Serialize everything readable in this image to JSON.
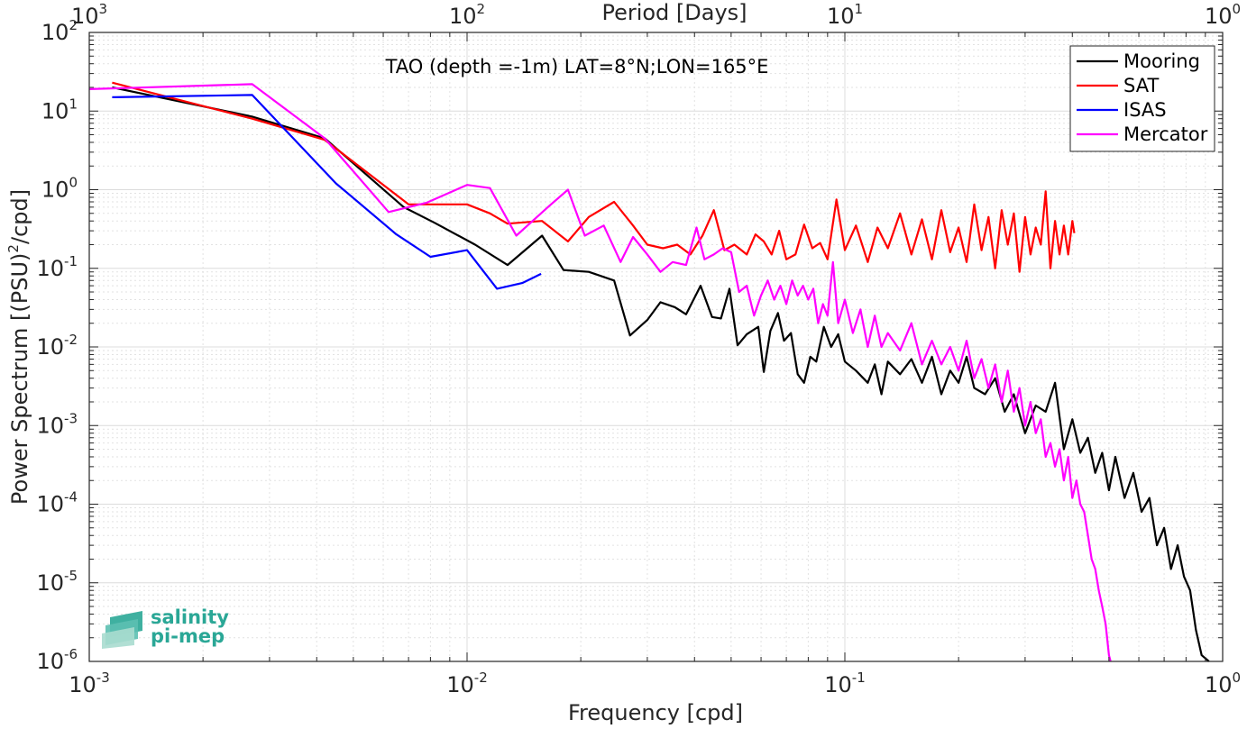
{
  "chart_data": {
    "type": "line",
    "title": "TAO (depth =-1m) LAT=8°N;LON=165°E",
    "xlabel": "Frequency [cpd]",
    "ylabel_main": "Power Spectrum [(PSU)",
    "ylabel_sup": "2",
    "ylabel_tail": "/cpd]",
    "top_xlabel": "Period [Days]",
    "x_scale": "log",
    "y_scale": "log",
    "xlim": [
      0.001,
      1
    ],
    "ylim": [
      1e-06,
      100
    ],
    "grid": true,
    "legend_position": "top-right",
    "x_ticks": [
      {
        "value": 0.001,
        "base": "10",
        "exp": "-3"
      },
      {
        "value": 0.01,
        "base": "10",
        "exp": "-2"
      },
      {
        "value": 0.1,
        "base": "10",
        "exp": "-1"
      },
      {
        "value": 1,
        "base": "10",
        "exp": "0"
      }
    ],
    "top_ticks": [
      {
        "value": 0.001,
        "base": "10",
        "exp": "3"
      },
      {
        "value": 0.01,
        "base": "10",
        "exp": "2"
      },
      {
        "value": 0.1,
        "base": "10",
        "exp": "1"
      },
      {
        "value": 1,
        "base": "10",
        "exp": "0"
      }
    ],
    "y_ticks": [
      {
        "value": 100,
        "base": "10",
        "exp": "2"
      },
      {
        "value": 10,
        "base": "10",
        "exp": "1"
      },
      {
        "value": 1,
        "base": "10",
        "exp": "0"
      },
      {
        "value": 0.1,
        "base": "10",
        "exp": "-1"
      },
      {
        "value": 0.01,
        "base": "10",
        "exp": "-2"
      },
      {
        "value": 0.001,
        "base": "10",
        "exp": "-3"
      },
      {
        "value": 0.0001,
        "base": "10",
        "exp": "-4"
      },
      {
        "value": 1e-05,
        "base": "10",
        "exp": "-5"
      },
      {
        "value": 1e-06,
        "base": "10",
        "exp": "-6"
      }
    ],
    "series": [
      {
        "name": "Mooring",
        "color": "#000000",
        "points": [
          [
            0.00115,
            20
          ],
          [
            0.0027,
            8.5
          ],
          [
            0.0042,
            4.5
          ],
          [
            0.0068,
            0.6
          ],
          [
            0.0082,
            0.38
          ],
          [
            0.0105,
            0.2
          ],
          [
            0.0128,
            0.11
          ],
          [
            0.0158,
            0.26
          ],
          [
            0.018,
            0.095
          ],
          [
            0.021,
            0.09
          ],
          [
            0.0245,
            0.07
          ],
          [
            0.027,
            0.014
          ],
          [
            0.03,
            0.022
          ],
          [
            0.0325,
            0.037
          ],
          [
            0.0355,
            0.032
          ],
          [
            0.038,
            0.026
          ],
          [
            0.0415,
            0.06
          ],
          [
            0.0445,
            0.024
          ],
          [
            0.047,
            0.023
          ],
          [
            0.0495,
            0.055
          ],
          [
            0.052,
            0.0105
          ],
          [
            0.055,
            0.0145
          ],
          [
            0.059,
            0.018
          ],
          [
            0.061,
            0.0048
          ],
          [
            0.0635,
            0.016
          ],
          [
            0.0665,
            0.027
          ],
          [
            0.069,
            0.012
          ],
          [
            0.072,
            0.015
          ],
          [
            0.075,
            0.0045
          ],
          [
            0.078,
            0.0035
          ],
          [
            0.081,
            0.0075
          ],
          [
            0.084,
            0.0065
          ],
          [
            0.088,
            0.018
          ],
          [
            0.092,
            0.01
          ],
          [
            0.096,
            0.0145
          ],
          [
            0.1,
            0.0065
          ],
          [
            0.107,
            0.005
          ],
          [
            0.115,
            0.0035
          ],
          [
            0.12,
            0.006
          ],
          [
            0.125,
            0.0025
          ],
          [
            0.13,
            0.0065
          ],
          [
            0.14,
            0.0045
          ],
          [
            0.15,
            0.007
          ],
          [
            0.16,
            0.0035
          ],
          [
            0.17,
            0.0075
          ],
          [
            0.18,
            0.0025
          ],
          [
            0.19,
            0.005
          ],
          [
            0.2,
            0.0035
          ],
          [
            0.21,
            0.0075
          ],
          [
            0.22,
            0.003
          ],
          [
            0.235,
            0.0025
          ],
          [
            0.25,
            0.004
          ],
          [
            0.265,
            0.0015
          ],
          [
            0.28,
            0.0025
          ],
          [
            0.3,
            0.0008
          ],
          [
            0.32,
            0.0018
          ],
          [
            0.34,
            0.0015
          ],
          [
            0.36,
            0.0035
          ],
          [
            0.38,
            0.0005
          ],
          [
            0.4,
            0.0012
          ],
          [
            0.42,
            0.00045
          ],
          [
            0.44,
            0.0007
          ],
          [
            0.46,
            0.00025
          ],
          [
            0.48,
            0.00045
          ],
          [
            0.5,
            0.00015
          ],
          [
            0.52,
            0.0004
          ],
          [
            0.55,
            0.00012
          ],
          [
            0.58,
            0.00025
          ],
          [
            0.61,
            8e-05
          ],
          [
            0.64,
            0.00012
          ],
          [
            0.67,
            3e-05
          ],
          [
            0.7,
            5e-05
          ],
          [
            0.73,
            1.5e-05
          ],
          [
            0.76,
            3e-05
          ],
          [
            0.79,
            1.2e-05
          ],
          [
            0.82,
            8e-06
          ],
          [
            0.85,
            2.5e-06
          ],
          [
            0.88,
            1.2e-06
          ],
          [
            0.92,
            1e-06
          ]
        ]
      },
      {
        "name": "SAT",
        "color": "#ff0000",
        "points": [
          [
            0.00115,
            23
          ],
          [
            0.0027,
            8
          ],
          [
            0.0042,
            4.3
          ],
          [
            0.007,
            0.65
          ],
          [
            0.01,
            0.65
          ],
          [
            0.0115,
            0.5
          ],
          [
            0.0128,
            0.37
          ],
          [
            0.0158,
            0.4
          ],
          [
            0.0185,
            0.22
          ],
          [
            0.021,
            0.45
          ],
          [
            0.0245,
            0.7
          ],
          [
            0.0275,
            0.35
          ],
          [
            0.03,
            0.2
          ],
          [
            0.033,
            0.18
          ],
          [
            0.036,
            0.2
          ],
          [
            0.039,
            0.15
          ],
          [
            0.042,
            0.26
          ],
          [
            0.045,
            0.55
          ],
          [
            0.048,
            0.17
          ],
          [
            0.051,
            0.2
          ],
          [
            0.055,
            0.15
          ],
          [
            0.058,
            0.27
          ],
          [
            0.061,
            0.22
          ],
          [
            0.064,
            0.15
          ],
          [
            0.067,
            0.3
          ],
          [
            0.07,
            0.13
          ],
          [
            0.074,
            0.15
          ],
          [
            0.078,
            0.36
          ],
          [
            0.082,
            0.18
          ],
          [
            0.086,
            0.21
          ],
          [
            0.09,
            0.13
          ],
          [
            0.095,
            0.75
          ],
          [
            0.1,
            0.17
          ],
          [
            0.107,
            0.35
          ],
          [
            0.115,
            0.12
          ],
          [
            0.122,
            0.33
          ],
          [
            0.13,
            0.18
          ],
          [
            0.14,
            0.5
          ],
          [
            0.15,
            0.15
          ],
          [
            0.16,
            0.42
          ],
          [
            0.17,
            0.13
          ],
          [
            0.18,
            0.55
          ],
          [
            0.19,
            0.16
          ],
          [
            0.2,
            0.33
          ],
          [
            0.21,
            0.12
          ],
          [
            0.22,
            0.65
          ],
          [
            0.23,
            0.17
          ],
          [
            0.24,
            0.45
          ],
          [
            0.25,
            0.1
          ],
          [
            0.26,
            0.55
          ],
          [
            0.27,
            0.2
          ],
          [
            0.28,
            0.5
          ],
          [
            0.29,
            0.09
          ],
          [
            0.3,
            0.45
          ],
          [
            0.31,
            0.15
          ],
          [
            0.32,
            0.33
          ],
          [
            0.33,
            0.2
          ],
          [
            0.34,
            0.95
          ],
          [
            0.35,
            0.1
          ],
          [
            0.36,
            0.4
          ],
          [
            0.37,
            0.15
          ],
          [
            0.38,
            0.35
          ],
          [
            0.39,
            0.15
          ],
          [
            0.4,
            0.4
          ],
          [
            0.405,
            0.28
          ]
        ]
      },
      {
        "name": "ISAS",
        "color": "#0000ff",
        "points": [
          [
            0.00115,
            15
          ],
          [
            0.0027,
            16
          ],
          [
            0.0045,
            1.2
          ],
          [
            0.0065,
            0.27
          ],
          [
            0.008,
            0.14
          ],
          [
            0.01,
            0.17
          ],
          [
            0.012,
            0.055
          ],
          [
            0.014,
            0.065
          ],
          [
            0.0157,
            0.085
          ]
        ]
      },
      {
        "name": "Mercator",
        "color": "#ff00ff",
        "points": [
          [
            0.001,
            19
          ],
          [
            0.0027,
            22
          ],
          [
            0.0042,
            4.5
          ],
          [
            0.0062,
            0.52
          ],
          [
            0.0078,
            0.68
          ],
          [
            0.01,
            1.15
          ],
          [
            0.0115,
            1.05
          ],
          [
            0.0135,
            0.26
          ],
          [
            0.0165,
            0.62
          ],
          [
            0.0185,
            1.0
          ],
          [
            0.0205,
            0.26
          ],
          [
            0.023,
            0.35
          ],
          [
            0.0255,
            0.12
          ],
          [
            0.0275,
            0.25
          ],
          [
            0.03,
            0.15
          ],
          [
            0.0325,
            0.09
          ],
          [
            0.035,
            0.12
          ],
          [
            0.038,
            0.11
          ],
          [
            0.0405,
            0.33
          ],
          [
            0.0425,
            0.13
          ],
          [
            0.045,
            0.15
          ],
          [
            0.0475,
            0.18
          ],
          [
            0.05,
            0.16
          ],
          [
            0.0525,
            0.05
          ],
          [
            0.055,
            0.06
          ],
          [
            0.0575,
            0.025
          ],
          [
            0.06,
            0.045
          ],
          [
            0.0625,
            0.07
          ],
          [
            0.065,
            0.04
          ],
          [
            0.0675,
            0.06
          ],
          [
            0.07,
            0.035
          ],
          [
            0.0725,
            0.07
          ],
          [
            0.075,
            0.045
          ],
          [
            0.0775,
            0.06
          ],
          [
            0.08,
            0.04
          ],
          [
            0.0825,
            0.055
          ],
          [
            0.085,
            0.02
          ],
          [
            0.0875,
            0.035
          ],
          [
            0.09,
            0.025
          ],
          [
            0.093,
            0.12
          ],
          [
            0.096,
            0.02
          ],
          [
            0.1,
            0.04
          ],
          [
            0.105,
            0.015
          ],
          [
            0.11,
            0.03
          ],
          [
            0.115,
            0.01
          ],
          [
            0.12,
            0.025
          ],
          [
            0.125,
            0.01
          ],
          [
            0.13,
            0.015
          ],
          [
            0.14,
            0.009
          ],
          [
            0.15,
            0.02
          ],
          [
            0.16,
            0.006
          ],
          [
            0.17,
            0.012
          ],
          [
            0.18,
            0.006
          ],
          [
            0.19,
            0.01
          ],
          [
            0.2,
            0.005
          ],
          [
            0.21,
            0.012
          ],
          [
            0.22,
            0.004
          ],
          [
            0.23,
            0.007
          ],
          [
            0.24,
            0.003
          ],
          [
            0.25,
            0.006
          ],
          [
            0.26,
            0.002
          ],
          [
            0.27,
            0.005
          ],
          [
            0.28,
            0.0015
          ],
          [
            0.29,
            0.003
          ],
          [
            0.3,
            0.001
          ],
          [
            0.31,
            0.002
          ],
          [
            0.32,
            0.0008
          ],
          [
            0.33,
            0.0012
          ],
          [
            0.34,
            0.0004
          ],
          [
            0.35,
            0.0006
          ],
          [
            0.36,
            0.0003
          ],
          [
            0.37,
            0.0005
          ],
          [
            0.38,
            0.0002
          ],
          [
            0.39,
            0.0004
          ],
          [
            0.4,
            0.00012
          ],
          [
            0.41,
            0.0002
          ],
          [
            0.42,
            0.0001
          ],
          [
            0.43,
            8e-05
          ],
          [
            0.44,
            4e-05
          ],
          [
            0.45,
            2e-05
          ],
          [
            0.46,
            1.5e-05
          ],
          [
            0.47,
            8e-06
          ],
          [
            0.48,
            5e-06
          ],
          [
            0.49,
            3e-06
          ],
          [
            0.5,
            1.2e-06
          ],
          [
            0.505,
            1e-06
          ]
        ]
      }
    ]
  },
  "logo": {
    "line1": "salinity",
    "line2": "pi-mep",
    "color": "#2aa796"
  }
}
